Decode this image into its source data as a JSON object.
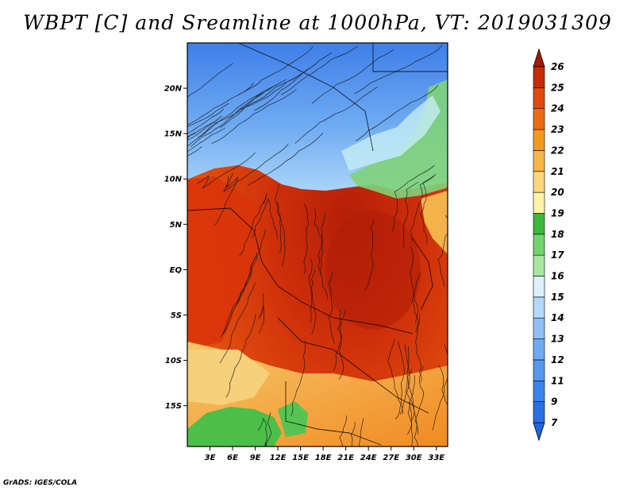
{
  "title": "WBPT [C] and Sreamline at 1000hPa, VT: 2019031309",
  "credit": "GrADS: IGES/COLA",
  "map": {
    "lat_ticks": [
      "20N",
      "15N",
      "10N",
      "5N",
      "EQ",
      "5S",
      "10S",
      "15S"
    ],
    "lon_ticks": [
      "3E",
      "6E",
      "9E",
      "12E",
      "15E",
      "18E",
      "21E",
      "24E",
      "27E",
      "30E",
      "33E"
    ],
    "lat_values": [
      20,
      15,
      10,
      5,
      0,
      -5,
      -10,
      -15
    ],
    "lon_values": [
      3,
      6,
      9,
      12,
      15,
      18,
      21,
      24,
      27,
      30,
      33
    ],
    "lon_range": [
      0,
      34.5
    ],
    "lat_range": [
      -19.5,
      25
    ]
  },
  "colorbar": {
    "levels": [
      "7",
      "9",
      "11",
      "12",
      "13",
      "14",
      "15",
      "16",
      "17",
      "18",
      "19",
      "20",
      "21",
      "22",
      "23",
      "24",
      "25",
      "26"
    ],
    "colors": [
      "#2a6fe6",
      "#3c82ee",
      "#5598f2",
      "#6eabf5",
      "#8fc1f7",
      "#b3d8fa",
      "#dcf0fb",
      "#a8e6a0",
      "#6fd46c",
      "#3cb83a",
      "#fff3a8",
      "#fbd77a",
      "#f9b648",
      "#f39a1e",
      "#ec6d12",
      "#e14a0c",
      "#c82a06",
      "#a31a05"
    ],
    "under_color": "#2064e0",
    "over_color": "#a31a05"
  }
}
